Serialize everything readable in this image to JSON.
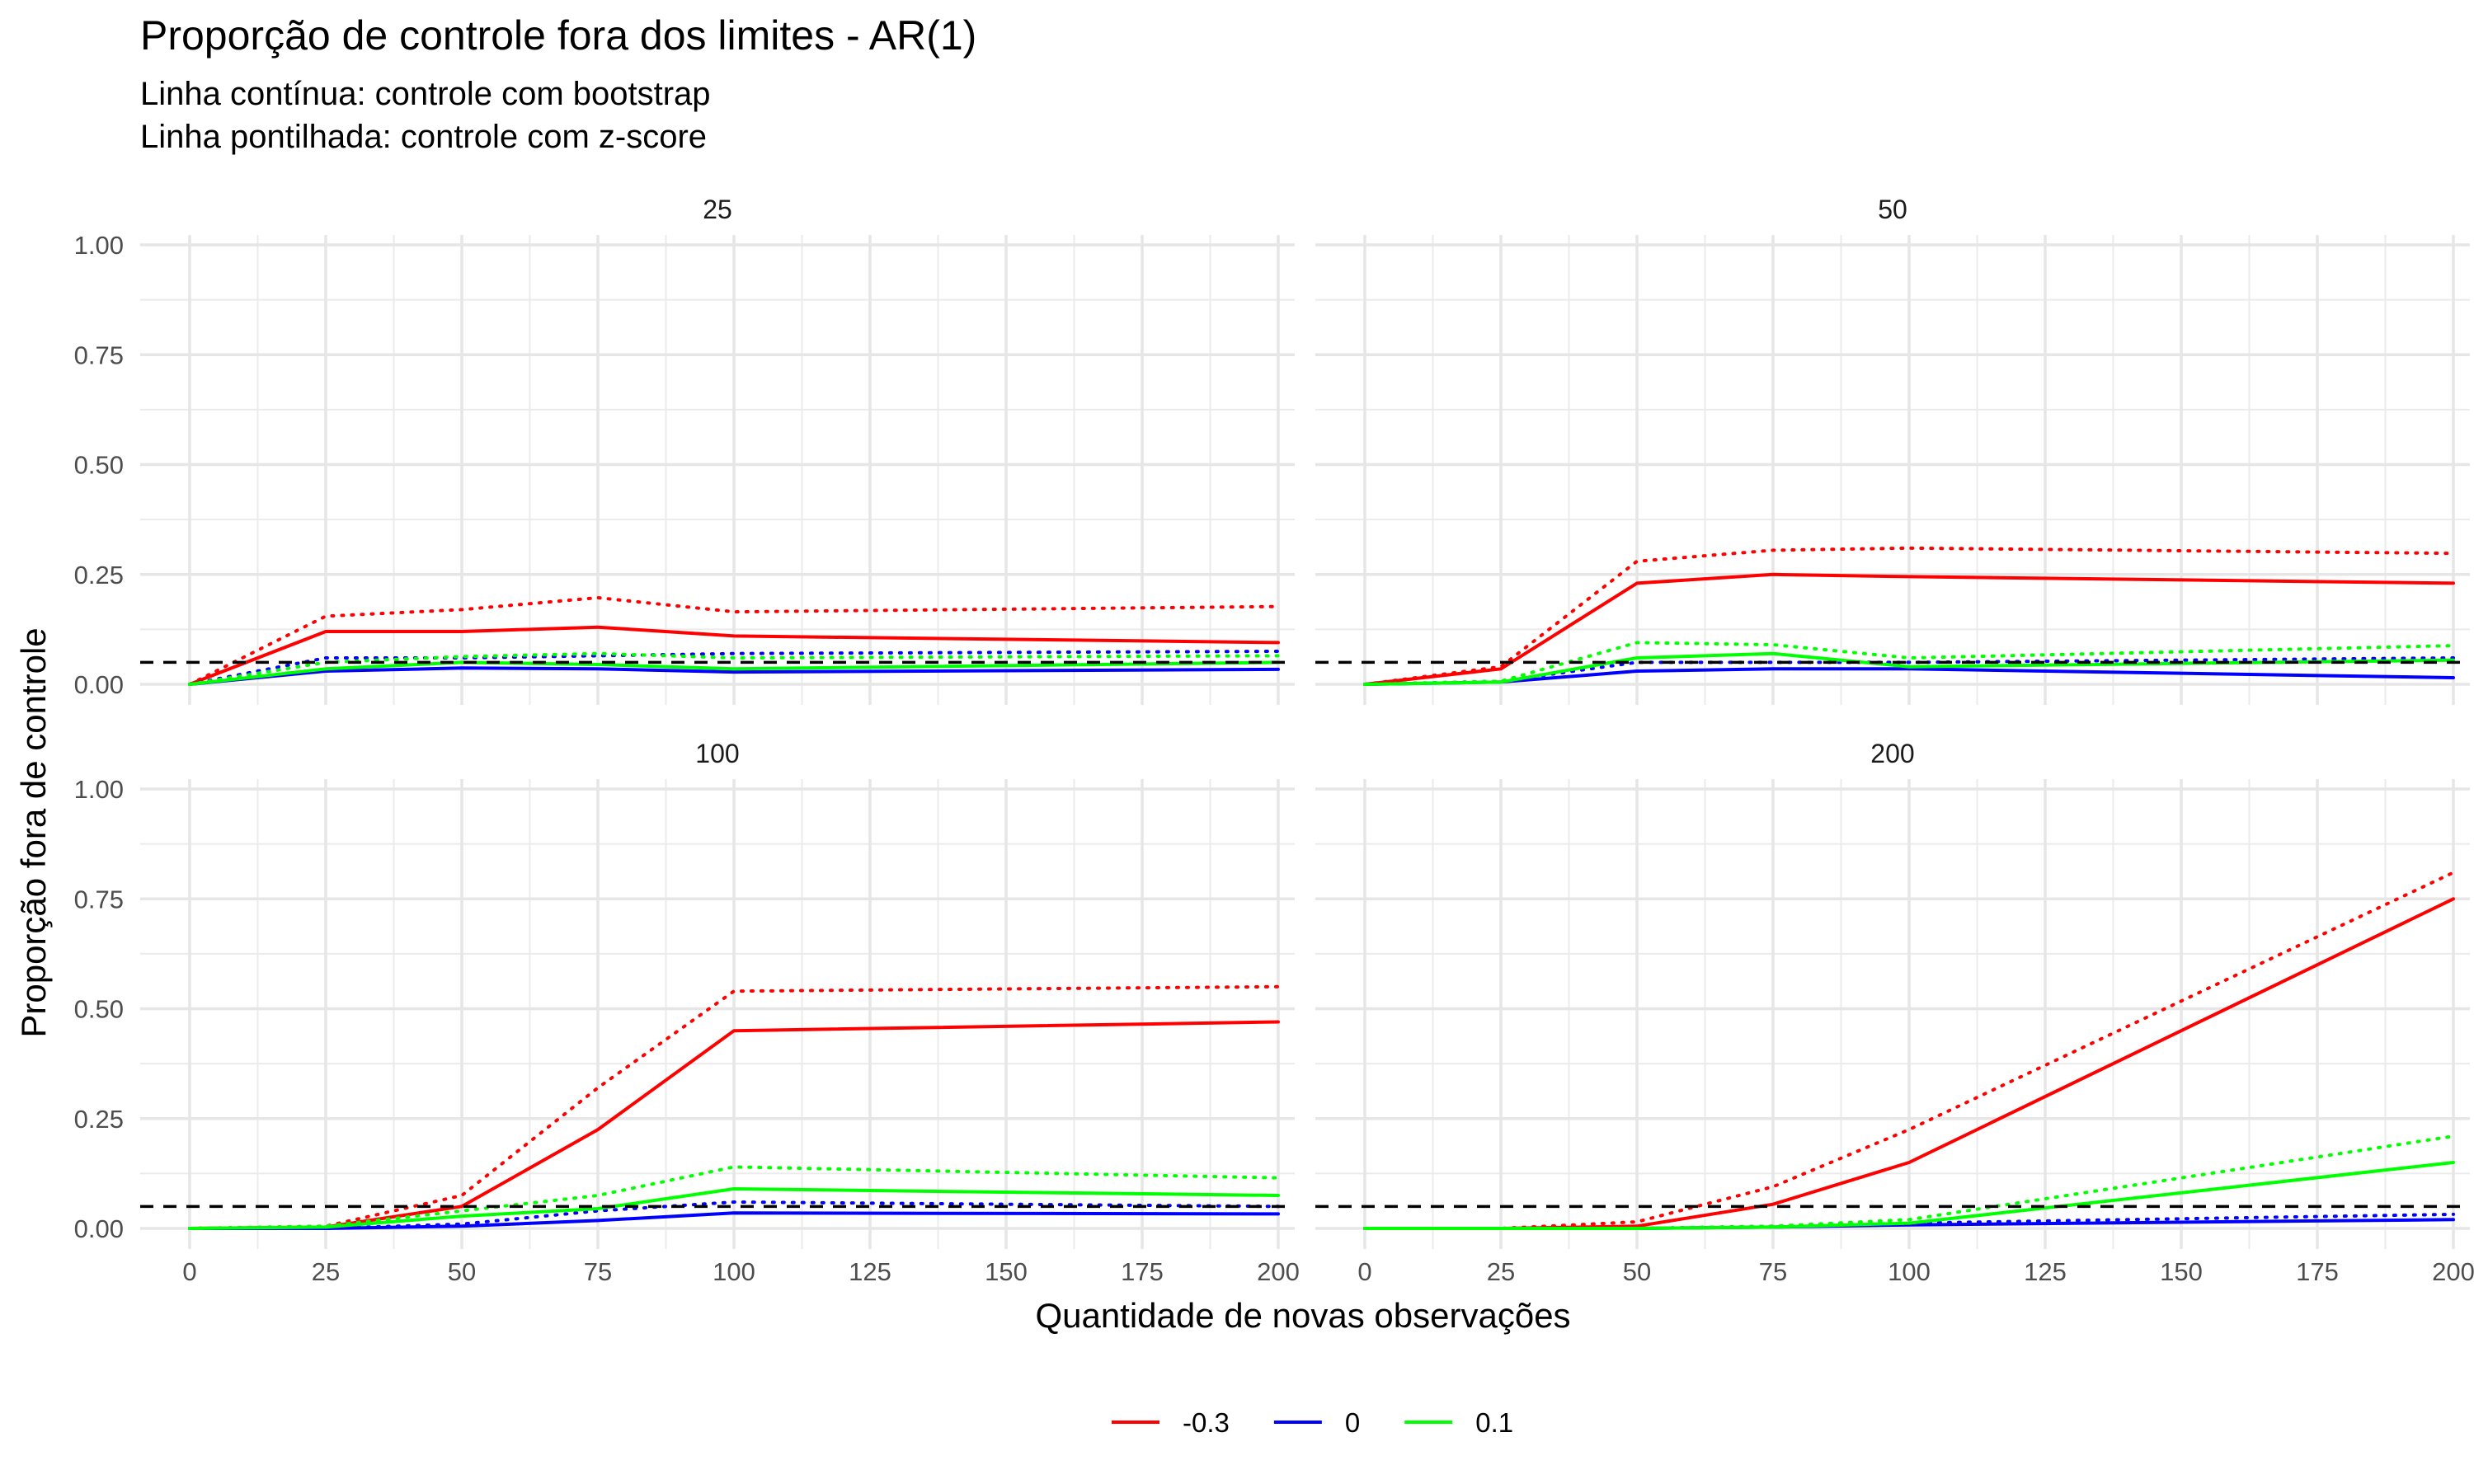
{
  "title": "Proporção de controle fora dos limites - AR(1)",
  "subtitle_lines": [
    "Linha contínua: controle com bootstrap",
    "Linha pontilhada: controle com z-score"
  ],
  "chart_data": {
    "type": "line",
    "xlabel": "Quantidade de novas observações",
    "ylabel": "Proporção fora de controle",
    "xlim": [
      0,
      200
    ],
    "ylim": [
      0,
      1
    ],
    "x_ticks": [
      0,
      25,
      50,
      75,
      100,
      125,
      150,
      175,
      200
    ],
    "y_ticks": [
      0,
      0.25,
      0.5,
      0.75,
      1.0
    ],
    "x_tick_labels": [
      "0",
      "25",
      "50",
      "75",
      "100",
      "125",
      "150",
      "175",
      "200"
    ],
    "y_tick_labels": [
      "0.00",
      "0.25",
      "0.50",
      "0.75",
      "1.00"
    ],
    "reference_line": 0.05,
    "x": [
      0,
      25,
      50,
      75,
      100,
      200
    ],
    "legend": {
      "position": "bottom",
      "entries": [
        {
          "label": "-0.3",
          "color": "#ff0000"
        },
        {
          "label": "0",
          "color": "#0000ff"
        },
        {
          "label": "0.1",
          "color": "#00ff00"
        }
      ]
    },
    "line_styles": {
      "bootstrap": "solid",
      "zscore": "dotted"
    },
    "panels": [
      {
        "label": "25",
        "series": [
          {
            "group": "-0.3",
            "method": "bootstrap",
            "values": [
              0.0,
              0.12,
              0.12,
              0.13,
              0.11,
              0.095
            ]
          },
          {
            "group": "-0.3",
            "method": "zscore",
            "values": [
              0.0,
              0.155,
              0.17,
              0.197,
              0.165,
              0.177
            ]
          },
          {
            "group": "0",
            "method": "bootstrap",
            "values": [
              0.0,
              0.03,
              0.037,
              0.035,
              0.028,
              0.034
            ]
          },
          {
            "group": "0",
            "method": "zscore",
            "values": [
              0.0,
              0.06,
              0.06,
              0.065,
              0.07,
              0.075
            ]
          },
          {
            "group": "0.1",
            "method": "bootstrap",
            "values": [
              0.0,
              0.035,
              0.05,
              0.045,
              0.035,
              0.05
            ]
          },
          {
            "group": "0.1",
            "method": "zscore",
            "values": [
              0.0,
              0.05,
              0.063,
              0.07,
              0.06,
              0.065
            ]
          }
        ]
      },
      {
        "label": "50",
        "series": [
          {
            "group": "-0.3",
            "method": "bootstrap",
            "values": [
              0.0,
              0.035,
              0.23,
              0.25,
              0.245,
              0.23
            ]
          },
          {
            "group": "-0.3",
            "method": "zscore",
            "values": [
              0.0,
              0.04,
              0.28,
              0.305,
              0.31,
              0.298
            ]
          },
          {
            "group": "0",
            "method": "bootstrap",
            "values": [
              0.0,
              0.005,
              0.03,
              0.035,
              0.035,
              0.015
            ]
          },
          {
            "group": "0",
            "method": "zscore",
            "values": [
              0.0,
              0.007,
              0.05,
              0.05,
              0.05,
              0.06
            ]
          },
          {
            "group": "0.1",
            "method": "bootstrap",
            "values": [
              0.0,
              0.005,
              0.06,
              0.07,
              0.04,
              0.055
            ]
          },
          {
            "group": "0.1",
            "method": "zscore",
            "values": [
              0.0,
              0.007,
              0.095,
              0.09,
              0.06,
              0.088
            ]
          }
        ]
      },
      {
        "label": "100",
        "series": [
          {
            "group": "-0.3",
            "method": "bootstrap",
            "values": [
              0.0,
              0.003,
              0.05,
              0.225,
              0.45,
              0.47
            ]
          },
          {
            "group": "-0.3",
            "method": "zscore",
            "values": [
              0.0,
              0.005,
              0.075,
              0.32,
              0.54,
              0.55
            ]
          },
          {
            "group": "0",
            "method": "bootstrap",
            "values": [
              0.0,
              0.0,
              0.005,
              0.018,
              0.035,
              0.033
            ]
          },
          {
            "group": "0",
            "method": "zscore",
            "values": [
              0.0,
              0.0,
              0.01,
              0.04,
              0.06,
              0.05
            ]
          },
          {
            "group": "0.1",
            "method": "bootstrap",
            "values": [
              0.0,
              0.003,
              0.028,
              0.045,
              0.09,
              0.075
            ]
          },
          {
            "group": "0.1",
            "method": "zscore",
            "values": [
              0.0,
              0.005,
              0.04,
              0.075,
              0.14,
              0.115
            ]
          }
        ]
      },
      {
        "label": "200",
        "series": [
          {
            "group": "-0.3",
            "method": "bootstrap",
            "values": [
              0.0,
              0.0,
              0.005,
              0.055,
              0.15,
              0.75
            ]
          },
          {
            "group": "-0.3",
            "method": "zscore",
            "values": [
              0.0,
              0.0,
              0.015,
              0.095,
              0.225,
              0.81
            ]
          },
          {
            "group": "0",
            "method": "bootstrap",
            "values": [
              0.0,
              0.0,
              0.0,
              0.003,
              0.008,
              0.02
            ]
          },
          {
            "group": "0",
            "method": "zscore",
            "values": [
              0.0,
              0.0,
              0.0,
              0.005,
              0.012,
              0.032
            ]
          },
          {
            "group": "0.1",
            "method": "bootstrap",
            "values": [
              0.0,
              0.0,
              0.0,
              0.003,
              0.012,
              0.15
            ]
          },
          {
            "group": "0.1",
            "method": "zscore",
            "values": [
              0.0,
              0.0,
              0.0,
              0.005,
              0.02,
              0.21
            ]
          }
        ]
      }
    ]
  }
}
